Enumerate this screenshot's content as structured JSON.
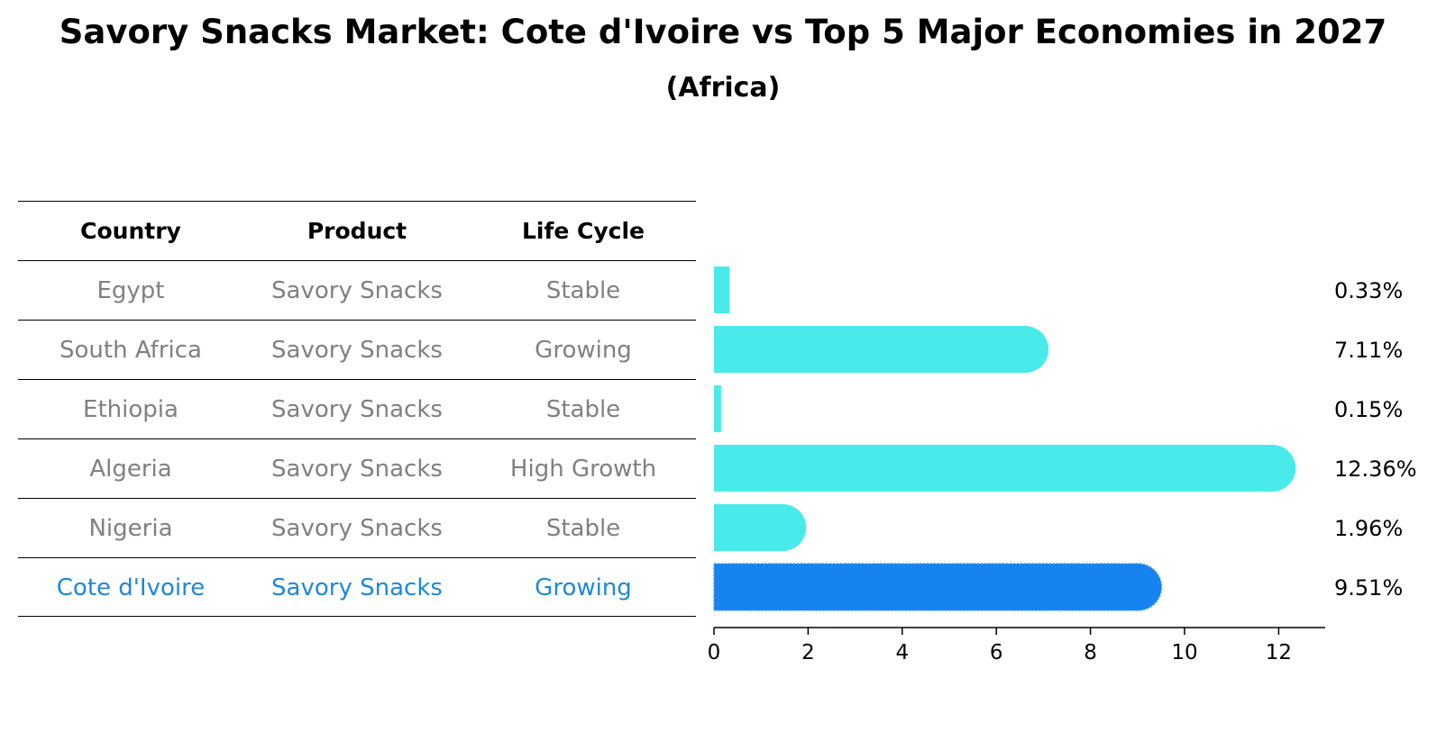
{
  "title": "Savory Snacks Market: Cote d'Ivoire vs Top 5 Major Economies in 2027",
  "subtitle": "(Africa)",
  "table": {
    "headers": [
      "Country",
      "Product",
      "Life Cycle"
    ],
    "rows": [
      {
        "country": "Egypt",
        "product": "Savory Snacks",
        "life_cycle": "Stable"
      },
      {
        "country": "South Africa",
        "product": "Savory Snacks",
        "life_cycle": "Growing"
      },
      {
        "country": "Ethiopia",
        "product": "Savory Snacks",
        "life_cycle": "Stable"
      },
      {
        "country": "Algeria",
        "product": "Savory Snacks",
        "life_cycle": "High Growth"
      },
      {
        "country": "Nigeria",
        "product": "Savory Snacks",
        "life_cycle": "Stable"
      },
      {
        "country": "Cote d'Ivoire",
        "product": "Savory Snacks",
        "life_cycle": "Growing"
      }
    ]
  },
  "chart_data": {
    "type": "bar",
    "orientation": "horizontal",
    "title": "Savory Snacks Market: Cote d'Ivoire vs Top 5 Major Economies in 2027",
    "subtitle": "(Africa)",
    "categories": [
      "Egypt",
      "South Africa",
      "Ethiopia",
      "Algeria",
      "Nigeria",
      "Cote d'Ivoire"
    ],
    "values": [
      0.33,
      7.11,
      0.15,
      12.36,
      1.96,
      9.51
    ],
    "value_labels": [
      "0.33%",
      "7.11%",
      "0.15%",
      "12.36%",
      "1.96%",
      "9.51%"
    ],
    "highlight": "Cote d'Ivoire",
    "xlim": [
      0,
      13
    ],
    "xticks": [
      0,
      2,
      4,
      6,
      8,
      10,
      12
    ],
    "xlabel": "",
    "ylabel": "",
    "grid": false
  },
  "colors": {
    "bar": "#4aeaea",
    "highlight_bar": "#1683f0",
    "highlight_text": "#1e88d6",
    "muted_text": "#808080"
  }
}
